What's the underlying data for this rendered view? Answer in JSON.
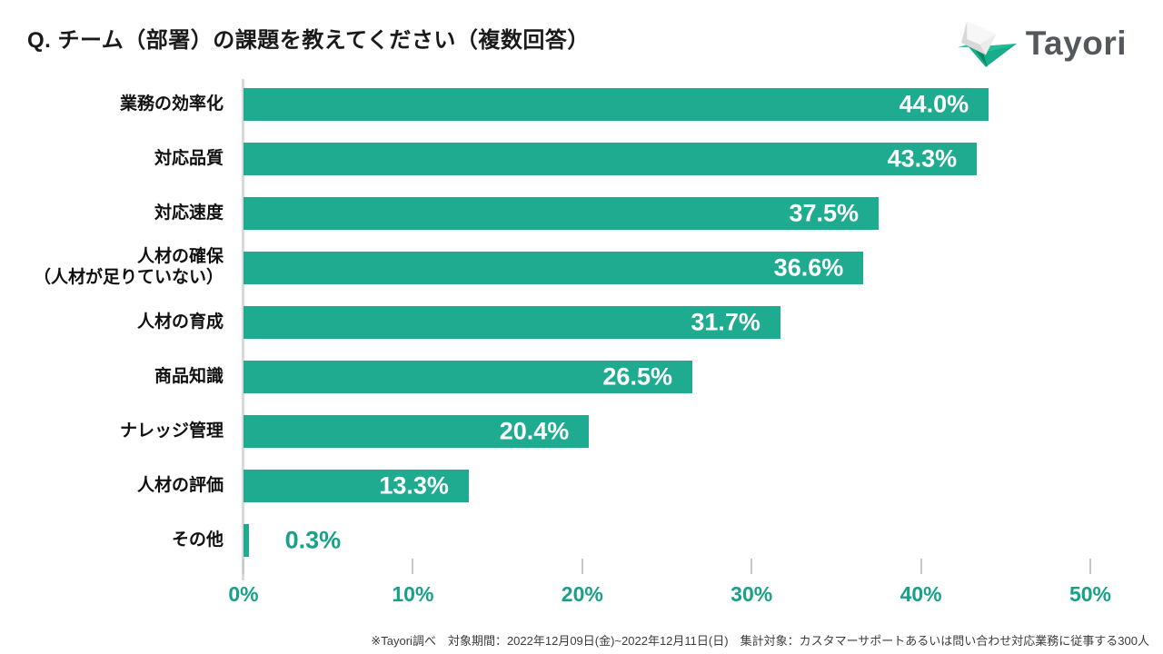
{
  "title": "Q. チーム（部署）の課題を教えてください（複数回答）",
  "logo": {
    "text": "Tayori"
  },
  "chart_data": {
    "type": "bar",
    "orientation": "horizontal",
    "title": "Q. チーム（部署）の課題を教えてください（複数回答）",
    "categories": [
      "業務の効率化",
      "対応品質",
      "対応速度",
      "人材の確保\n（人材が足りていない）",
      "人材の育成",
      "商品知識",
      "ナレッジ管理",
      "人材の評価",
      "その他"
    ],
    "values": [
      44.0,
      43.3,
      37.5,
      36.6,
      31.7,
      26.5,
      20.4,
      13.3,
      0.3
    ],
    "value_labels": [
      "44.0%",
      "43.3%",
      "37.5%",
      "36.6%",
      "31.7%",
      "26.5%",
      "20.4%",
      "13.3%",
      "0.3%"
    ],
    "xlim": [
      0,
      50
    ],
    "x_ticks": [
      "0%",
      "10%",
      "20%",
      "30%",
      "40%",
      "50%"
    ],
    "x_tick_values": [
      0,
      10,
      20,
      30,
      40,
      50
    ],
    "grid": false,
    "legend": false,
    "bar_color": "#1fab8f",
    "tick_label_color": "#17a188",
    "value_label_inside_color": "#ffffff",
    "value_label_outside_color": "#17a188",
    "axis_line_color": "#d9d9d9"
  },
  "footnote": "※Tayori調べ　対象期間：2022年12月09日(金)~2022年12月11日(日)　集計対象：カスタマーサポートあるいは問い合わせ対応業務に従事する300人"
}
